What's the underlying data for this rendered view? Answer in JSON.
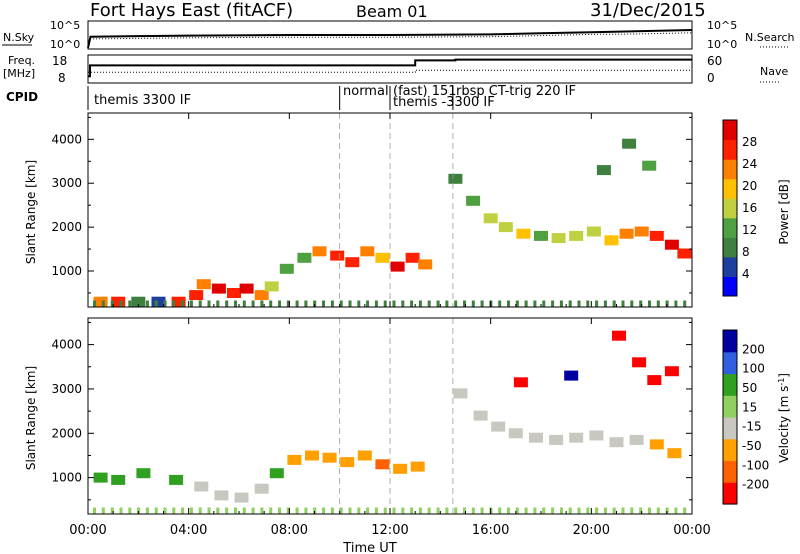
{
  "header": {
    "station": "Fort Hays East (fitACF)",
    "beam": "Beam 01",
    "date": "31/Dec/2015"
  },
  "noise_panel": {
    "left_label": "N.Sky",
    "right_label": "N.Search",
    "left_ticks": [
      "10^5",
      "10^0"
    ],
    "right_ticks": [
      "10^5",
      "10^0"
    ]
  },
  "freq_panel": {
    "left_label_1": "Freq.",
    "left_label_2": "[MHz]",
    "left_ticks": [
      "18",
      "8"
    ],
    "right_label": "Nave",
    "right_ticks": [
      "60",
      "0"
    ],
    "freq_steps": [
      {
        "t_start": 0.0,
        "t_end": 0.083,
        "value": 10.0
      },
      {
        "t_start": 0.083,
        "t_end": 1.0,
        "value": 14.5
      },
      {
        "t_start": 1.0,
        "t_end": 13.0,
        "value": 14.5
      },
      {
        "t_start": 13.0,
        "t_end": 14.6,
        "value": 16.6
      },
      {
        "t_start": 14.6,
        "t_end": 24.0,
        "value": 16.9
      }
    ]
  },
  "cpid": {
    "label": "CPID",
    "programs": [
      {
        "name": "themis 3300 IF",
        "start": 0.0
      },
      {
        "name": "normal",
        "start": 10.0
      },
      {
        "name": "(fast) 151",
        "start": 12.0
      },
      {
        "name": "themis -3300 IF",
        "start": 12.0
      },
      {
        "name": "rbsp CT-trig 220 IF",
        "start": 14.5
      }
    ]
  },
  "power_panel": {
    "ylabel": "Slant Range [km]",
    "cbar_label": "Power [dB]",
    "cbar_ticks": [
      "28",
      "24",
      "20",
      "16",
      "12",
      "8",
      "4"
    ]
  },
  "velocity_panel": {
    "ylabel": "Slant Range [km]",
    "cbar_label_prefix": "Velocity [m s",
    "cbar_label_sup": "-1",
    "cbar_label_suffix": "]",
    "cbar_ticks": [
      "200",
      "100",
      "50",
      "15",
      "-15",
      "-50",
      "-100",
      "-200"
    ]
  },
  "x_axis": {
    "label": "Time UT",
    "ticks": [
      "00:00",
      "04:00",
      "08:00",
      "12:00",
      "16:00",
      "20:00",
      "00:00"
    ]
  },
  "y_ticks": [
    "4000",
    "3000",
    "2000",
    "1000"
  ],
  "colors": {
    "power_scale": [
      "#0000ff",
      "#1f3fa0",
      "#3f7f3f",
      "#4fa040",
      "#bfd040",
      "#ffc000",
      "#ff8000",
      "#ff2000",
      "#e00000"
    ],
    "velocity_scale": [
      "#0000a0",
      "#3060e0",
      "#2fa020",
      "#8fd060",
      "#c8c8c0",
      "#ffa000",
      "#ff6000",
      "#ff0000"
    ],
    "guide_lines": "#9a9a9a"
  },
  "chart_data": [
    {
      "type": "line",
      "title": "",
      "series": [
        {
          "name": "N.Sky",
          "x": [
            0,
            0.1,
            4,
            8,
            12,
            16,
            18,
            20,
            22,
            24
          ],
          "values": [
            0.2,
            2.2,
            2.4,
            2.5,
            2.5,
            2.6,
            2.8,
            3.0,
            3.2,
            3.4
          ]
        },
        {
          "name": "N.Search",
          "x": [
            0,
            0.1,
            4,
            8,
            12,
            16,
            18,
            20,
            22,
            24
          ],
          "values": [
            0.2,
            1.8,
            2.0,
            2.1,
            2.1,
            2.2,
            2.4,
            2.6,
            2.7,
            2.9
          ]
        }
      ],
      "ylim": [
        0,
        5
      ]
    },
    {
      "type": "line",
      "series": [
        {
          "name": "Freq.",
          "x": [
            0,
            0.08,
            1.0,
            13.0,
            14.6,
            24
          ],
          "values": [
            10,
            14.5,
            14.5,
            16.6,
            16.9,
            16.9
          ]
        },
        {
          "name": "Nave",
          "x": [
            0,
            1.0,
            13.0,
            24
          ],
          "values": [
            22,
            22,
            27,
            27
          ]
        }
      ]
    },
    {
      "type": "heatmap",
      "title": "Power [dB]",
      "xlabel": "Time UT",
      "ylabel": "Slant Range [km]",
      "xlim": [
        0,
        24
      ],
      "ylim": [
        180,
        4600
      ],
      "cells": [
        {
          "t": 0.5,
          "r": 300,
          "v": 20
        },
        {
          "t": 1.2,
          "r": 300,
          "v": 24
        },
        {
          "t": 2.0,
          "r": 300,
          "v": 8
        },
        {
          "t": 2.8,
          "r": 300,
          "v": 6
        },
        {
          "t": 3.6,
          "r": 300,
          "v": 24
        },
        {
          "t": 4.3,
          "r": 450,
          "v": 26
        },
        {
          "t": 4.6,
          "r": 700,
          "v": 20
        },
        {
          "t": 5.2,
          "r": 600,
          "v": 28
        },
        {
          "t": 5.8,
          "r": 500,
          "v": 26
        },
        {
          "t": 6.3,
          "r": 600,
          "v": 28
        },
        {
          "t": 6.9,
          "r": 450,
          "v": 22
        },
        {
          "t": 7.3,
          "r": 650,
          "v": 16
        },
        {
          "t": 7.9,
          "r": 1050,
          "v": 12
        },
        {
          "t": 8.6,
          "r": 1300,
          "v": 12
        },
        {
          "t": 9.2,
          "r": 1450,
          "v": 20
        },
        {
          "t": 9.9,
          "r": 1350,
          "v": 24
        },
        {
          "t": 10.5,
          "r": 1200,
          "v": 26
        },
        {
          "t": 11.1,
          "r": 1450,
          "v": 22
        },
        {
          "t": 11.7,
          "r": 1300,
          "v": 18
        },
        {
          "t": 12.3,
          "r": 1100,
          "v": 28
        },
        {
          "t": 12.9,
          "r": 1300,
          "v": 24
        },
        {
          "t": 13.4,
          "r": 1150,
          "v": 22
        },
        {
          "t": 14.6,
          "r": 3100,
          "v": 10
        },
        {
          "t": 15.3,
          "r": 2600,
          "v": 12
        },
        {
          "t": 16.0,
          "r": 2200,
          "v": 14
        },
        {
          "t": 16.6,
          "r": 2000,
          "v": 16
        },
        {
          "t": 17.3,
          "r": 1850,
          "v": 18
        },
        {
          "t": 18.0,
          "r": 1800,
          "v": 12
        },
        {
          "t": 18.7,
          "r": 1750,
          "v": 16
        },
        {
          "t": 19.4,
          "r": 1800,
          "v": 14
        },
        {
          "t": 20.1,
          "r": 1900,
          "v": 16
        },
        {
          "t": 20.8,
          "r": 1700,
          "v": 18
        },
        {
          "t": 21.4,
          "r": 1850,
          "v": 20
        },
        {
          "t": 22.0,
          "r": 1900,
          "v": 22
        },
        {
          "t": 22.6,
          "r": 1800,
          "v": 26
        },
        {
          "t": 23.2,
          "r": 1600,
          "v": 28
        },
        {
          "t": 23.7,
          "r": 1400,
          "v": 26
        },
        {
          "t": 21.5,
          "r": 3900,
          "v": 10
        },
        {
          "t": 22.3,
          "r": 3400,
          "v": 12
        },
        {
          "t": 20.5,
          "r": 3300,
          "v": 8
        }
      ]
    },
    {
      "type": "heatmap",
      "title": "Velocity [m s-1]",
      "xlabel": "Time UT",
      "ylabel": "Slant Range [km]",
      "xlim": [
        0,
        24
      ],
      "ylim": [
        180,
        4600
      ],
      "cells": [
        {
          "t": 0.5,
          "r": 1000,
          "v": 50
        },
        {
          "t": 1.2,
          "r": 950,
          "v": 50
        },
        {
          "t": 2.2,
          "r": 1100,
          "v": 50
        },
        {
          "t": 3.5,
          "r": 950,
          "v": 50
        },
        {
          "t": 4.5,
          "r": 800,
          "v": 0
        },
        {
          "t": 5.3,
          "r": 600,
          "v": 0
        },
        {
          "t": 6.1,
          "r": 550,
          "v": 0
        },
        {
          "t": 6.9,
          "r": 750,
          "v": 0
        },
        {
          "t": 7.5,
          "r": 1100,
          "v": 50
        },
        {
          "t": 8.2,
          "r": 1400,
          "v": -50
        },
        {
          "t": 8.9,
          "r": 1500,
          "v": -50
        },
        {
          "t": 9.6,
          "r": 1450,
          "v": -50
        },
        {
          "t": 10.3,
          "r": 1350,
          "v": -50
        },
        {
          "t": 11.0,
          "r": 1500,
          "v": -50
        },
        {
          "t": 11.7,
          "r": 1300,
          "v": -100
        },
        {
          "t": 12.4,
          "r": 1200,
          "v": -50
        },
        {
          "t": 13.1,
          "r": 1250,
          "v": -50
        },
        {
          "t": 14.8,
          "r": 2900,
          "v": 0
        },
        {
          "t": 15.6,
          "r": 2400,
          "v": 0
        },
        {
          "t": 16.3,
          "r": 2150,
          "v": 0
        },
        {
          "t": 17.0,
          "r": 2000,
          "v": 0
        },
        {
          "t": 17.8,
          "r": 1900,
          "v": 0
        },
        {
          "t": 18.6,
          "r": 1850,
          "v": 0
        },
        {
          "t": 19.4,
          "r": 1900,
          "v": 0
        },
        {
          "t": 20.2,
          "r": 1950,
          "v": 0
        },
        {
          "t": 21.0,
          "r": 1800,
          "v": 0
        },
        {
          "t": 21.8,
          "r": 1850,
          "v": 0
        },
        {
          "t": 22.6,
          "r": 1750,
          "v": -50
        },
        {
          "t": 23.3,
          "r": 1550,
          "v": -50
        },
        {
          "t": 17.2,
          "r": 3150,
          "v": -200
        },
        {
          "t": 19.2,
          "r": 3300,
          "v": 200
        },
        {
          "t": 21.1,
          "r": 4200,
          "v": -200
        },
        {
          "t": 21.9,
          "r": 3600,
          "v": -200
        },
        {
          "t": 22.5,
          "r": 3200,
          "v": -200
        },
        {
          "t": 23.2,
          "r": 3400,
          "v": -200
        }
      ]
    }
  ]
}
